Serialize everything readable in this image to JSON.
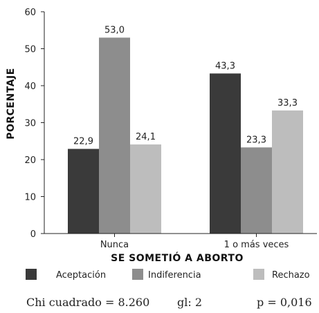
{
  "chart_data": {
    "type": "bar",
    "categories": [
      "Nunca",
      "1 o más veces"
    ],
    "series": [
      {
        "name": "Aceptación",
        "values": [
          22.9,
          43.3
        ],
        "labels": [
          "22,9",
          "43,3"
        ],
        "color": "#3a3a3a"
      },
      {
        "name": "Indiferencia",
        "values": [
          53.0,
          23.3
        ],
        "labels": [
          "53,0",
          "23,3"
        ],
        "color": "#8d8d8d"
      },
      {
        "name": "Rechazo",
        "values": [
          24.1,
          33.3
        ],
        "labels": [
          "24,1",
          "33,3"
        ],
        "color": "#bdbdbd"
      }
    ],
    "xlabel": "SE SOMETIÓ A ABORTO",
    "ylabel": "PORCENTAJE",
    "ylim": [
      0,
      60
    ],
    "yticks": [
      0,
      10,
      20,
      30,
      40,
      50,
      60
    ],
    "grid": false,
    "legend_position": "bottom"
  },
  "stats": {
    "chi": "Chi cuadrado = 8.260",
    "gl": "gl: 2",
    "p": "p = 0,016"
  }
}
